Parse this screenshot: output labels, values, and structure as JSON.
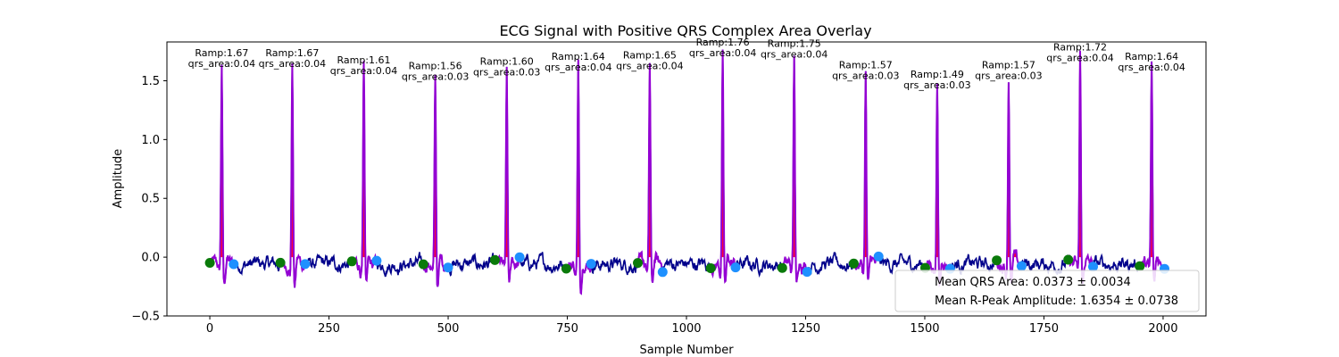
{
  "chart_data": {
    "type": "line",
    "title": "ECG Signal with Positive QRS Complex Area Overlay",
    "xlabel": "Sample Number",
    "ylabel": "Amplitude",
    "xlim": [
      -90,
      2090
    ],
    "ylim": [
      -0.5,
      1.83
    ],
    "xticks": [
      0,
      250,
      500,
      750,
      1000,
      1250,
      1500,
      1750,
      2000
    ],
    "yticks": [
      -0.5,
      0.0,
      0.5,
      1.0,
      1.5
    ],
    "xtick_labels": [
      "0",
      "250",
      "500",
      "750",
      "1000",
      "1250",
      "1500",
      "1750",
      "2000"
    ],
    "ytick_labels": [
      "−0.5",
      "0.0",
      "0.5",
      "1.0",
      "1.5"
    ],
    "grid": false,
    "colors": {
      "signal": "#00008b",
      "qrs_segment": "#9400d3",
      "qrs_area": "#ff0033",
      "onset_marker": "#0a7a0a",
      "offset_marker": "#1e90ff"
    },
    "beats": [
      {
        "r_peak_x": 25,
        "r_amp": 1.67,
        "onset_x": 0,
        "offset_x": 50,
        "label_ramp": "Ramp:1.67",
        "label_area": "qrs_area:0.04"
      },
      {
        "r_peak_x": 173,
        "r_amp": 1.67,
        "onset_x": 148,
        "offset_x": 200,
        "label_ramp": "Ramp:1.67",
        "label_area": "qrs_area:0.04"
      },
      {
        "r_peak_x": 323,
        "r_amp": 1.61,
        "onset_x": 298,
        "offset_x": 350,
        "label_ramp": "Ramp:1.61",
        "label_area": "qrs_area:0.04"
      },
      {
        "r_peak_x": 473,
        "r_amp": 1.56,
        "onset_x": 448,
        "offset_x": 500,
        "label_ramp": "Ramp:1.56",
        "label_area": "qrs_area:0.03"
      },
      {
        "r_peak_x": 623,
        "r_amp": 1.6,
        "onset_x": 598,
        "offset_x": 650,
        "label_ramp": "Ramp:1.60",
        "label_area": "qrs_area:0.03"
      },
      {
        "r_peak_x": 773,
        "r_amp": 1.64,
        "onset_x": 748,
        "offset_x": 800,
        "label_ramp": "Ramp:1.64",
        "label_area": "qrs_area:0.04"
      },
      {
        "r_peak_x": 923,
        "r_amp": 1.65,
        "onset_x": 898,
        "offset_x": 950,
        "label_ramp": "Ramp:1.65",
        "label_area": "qrs_area:0.04"
      },
      {
        "r_peak_x": 1076,
        "r_amp": 1.76,
        "onset_x": 1051,
        "offset_x": 1103,
        "label_ramp": "Ramp:1.76",
        "label_area": "qrs_area:0.04"
      },
      {
        "r_peak_x": 1226,
        "r_amp": 1.75,
        "onset_x": 1201,
        "offset_x": 1253,
        "label_ramp": "Ramp:1.75",
        "label_area": "qrs_area:0.04"
      },
      {
        "r_peak_x": 1376,
        "r_amp": 1.57,
        "onset_x": 1351,
        "offset_x": 1403,
        "label_ramp": "Ramp:1.57",
        "label_area": "qrs_area:0.03"
      },
      {
        "r_peak_x": 1526,
        "r_amp": 1.49,
        "onset_x": 1501,
        "offset_x": 1553,
        "label_ramp": "Ramp:1.49",
        "label_area": "qrs_area:0.03"
      },
      {
        "r_peak_x": 1676,
        "r_amp": 1.57,
        "onset_x": 1651,
        "offset_x": 1703,
        "label_ramp": "Ramp:1.57",
        "label_area": "qrs_area:0.03"
      },
      {
        "r_peak_x": 1826,
        "r_amp": 1.72,
        "onset_x": 1801,
        "offset_x": 1853,
        "label_ramp": "Ramp:1.72",
        "label_area": "qrs_area:0.04"
      },
      {
        "r_peak_x": 1976,
        "r_amp": 1.64,
        "onset_x": 1951,
        "offset_x": 2003,
        "label_ramp": "Ramp:1.64",
        "label_area": "qrs_area:0.04"
      }
    ],
    "legend": {
      "placement": "lower-right",
      "entries": [
        "Mean QRS Area: 0.0373 ± 0.0034",
        "Mean R-Peak Amplitude: 1.6354 ± 0.0738"
      ]
    }
  }
}
